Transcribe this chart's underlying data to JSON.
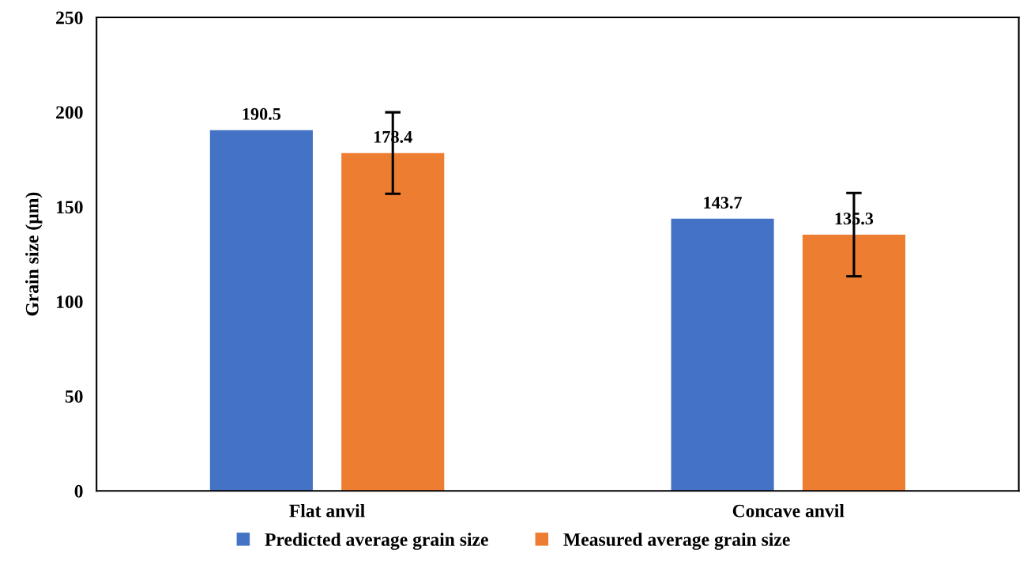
{
  "chart_data": {
    "type": "bar",
    "ylabel": "Grain size (µm)",
    "categories": [
      "Flat anvil",
      "Concave anvil"
    ],
    "series": [
      {
        "name": "Predicted average grain size",
        "color": "#4472c4",
        "values": [
          190.5,
          143.7
        ]
      },
      {
        "name": "Measured average grain size",
        "color": "#ed7d31",
        "values": [
          178.4,
          135.3
        ],
        "errors": [
          21.5,
          22
        ]
      }
    ],
    "ylim": [
      0,
      250
    ],
    "yticks": [
      0,
      50,
      100,
      150,
      200,
      250
    ],
    "grid": false,
    "legend": "bottom",
    "data_labels": true
  }
}
